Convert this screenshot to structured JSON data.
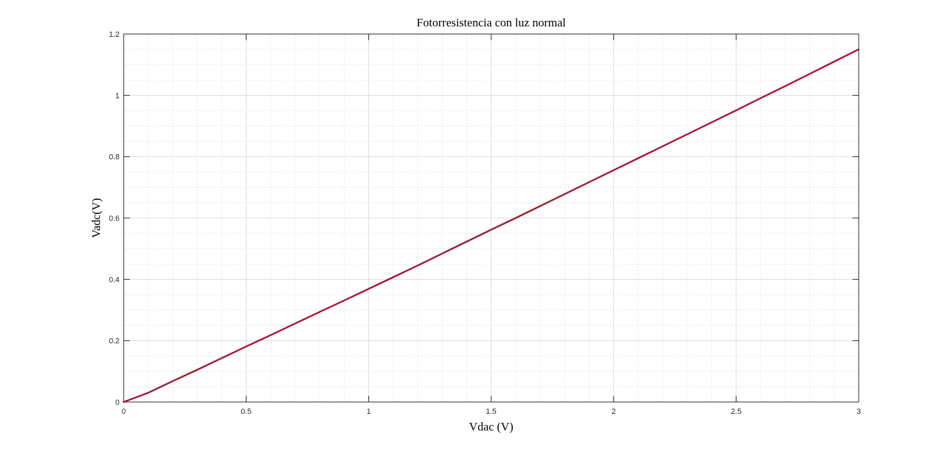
{
  "chart_data": {
    "type": "line",
    "title": "Fotorresistencia con luz normal",
    "xlabel": "Vdac (V)",
    "ylabel": "Vadc(V)",
    "xlim": [
      0,
      3
    ],
    "ylim": [
      0,
      1.2
    ],
    "grid": true,
    "minor_grid": true,
    "x_ticks": [
      "0",
      "0.5",
      "1",
      "1.5",
      "2",
      "2.5",
      "3"
    ],
    "y_ticks": [
      "0",
      "0.2",
      "0.4",
      "0.6",
      "0.8",
      "1",
      "1.2"
    ],
    "series": [
      {
        "x": [
          0,
          0.1,
          0.2,
          0.3,
          0.4,
          0.5,
          0.6,
          0.7,
          0.8,
          0.9,
          1.0,
          1.1,
          1.2,
          1.3,
          1.4,
          1.5,
          1.6,
          1.7,
          1.8,
          1.9,
          2.0,
          2.1,
          2.2,
          2.3,
          2.4,
          2.5,
          2.6,
          2.7,
          2.8,
          2.9,
          3.0
        ],
        "y": [
          0,
          0.03,
          0.068,
          0.105,
          0.143,
          0.181,
          0.218,
          0.256,
          0.294,
          0.331,
          0.369,
          0.407,
          0.445,
          0.484,
          0.523,
          0.562,
          0.6,
          0.639,
          0.678,
          0.717,
          0.756,
          0.795,
          0.834,
          0.873,
          0.912,
          0.951,
          0.991,
          1.03,
          1.07,
          1.11,
          1.15
        ],
        "color": "#a2142f"
      }
    ]
  }
}
